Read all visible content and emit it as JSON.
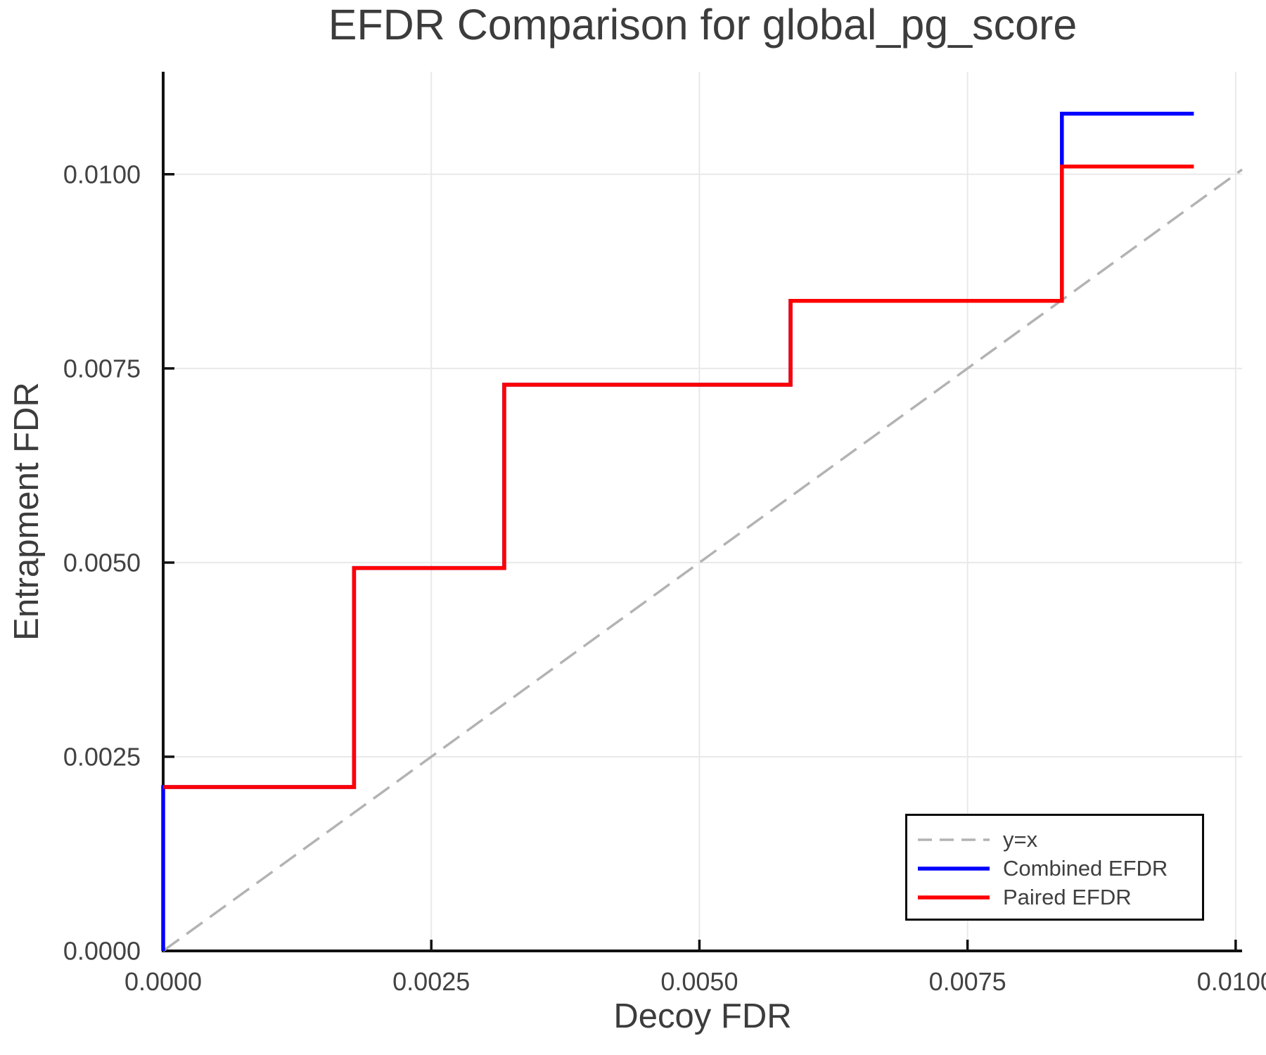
{
  "chart_data": {
    "type": "line",
    "title": "EFDR Comparison for global_pg_score",
    "xlabel": "Decoy FDR",
    "ylabel": "Entrapment FDR",
    "xlim": [
      0,
      0.01006
    ],
    "ylim": [
      0,
      0.01132
    ],
    "grid": true,
    "legend_position": "lower right",
    "xticks": [
      {
        "value": 0.0,
        "label": "0.0000"
      },
      {
        "value": 0.0025,
        "label": "0.0025"
      },
      {
        "value": 0.005,
        "label": "0.0050"
      },
      {
        "value": 0.0075,
        "label": "0.0075"
      },
      {
        "value": 0.01,
        "label": "0.0100"
      }
    ],
    "yticks": [
      {
        "value": 0.0,
        "label": "0.0000"
      },
      {
        "value": 0.0025,
        "label": "0.0025"
      },
      {
        "value": 0.005,
        "label": "0.0050"
      },
      {
        "value": 0.0075,
        "label": "0.0075"
      },
      {
        "value": 0.01,
        "label": "0.0100"
      }
    ],
    "series": [
      {
        "name": "y=x",
        "color": "#b3b3b3",
        "width": 3.5,
        "dash": "28 13",
        "points": [
          [
            0,
            0
          ],
          [
            0.01006,
            0.01006
          ]
        ]
      },
      {
        "name": "Combined EFDR",
        "color": "#0000ff",
        "width": 5.5,
        "dash": null,
        "points": [
          [
            0,
            0
          ],
          [
            0,
            0.00211
          ],
          [
            0.00178,
            0.00211
          ],
          [
            0.00178,
            0.00493
          ],
          [
            0.00318,
            0.00493
          ],
          [
            0.00318,
            0.00729
          ],
          [
            0.00585,
            0.00729
          ],
          [
            0.00585,
            0.00837
          ],
          [
            0.00838,
            0.00837
          ],
          [
            0.00838,
            0.01078
          ],
          [
            0.00961,
            0.01078
          ]
        ]
      },
      {
        "name": "Paired EFDR",
        "color": "#ff0000",
        "width": 5.5,
        "dash": null,
        "points": [
          [
            0,
            0.00211
          ],
          [
            0.00178,
            0.00211
          ],
          [
            0.00178,
            0.00493
          ],
          [
            0.00318,
            0.00493
          ],
          [
            0.00318,
            0.00729
          ],
          [
            0.00585,
            0.00729
          ],
          [
            0.00585,
            0.00837
          ],
          [
            0.00838,
            0.00837
          ],
          [
            0.00838,
            0.0101
          ],
          [
            0.00961,
            0.0101
          ]
        ]
      }
    ],
    "style": {
      "grid_color": "#e9e9e9",
      "spine_color": "#111111",
      "tick_label_color": "#424242",
      "title_color": "#3c3c3c"
    }
  }
}
